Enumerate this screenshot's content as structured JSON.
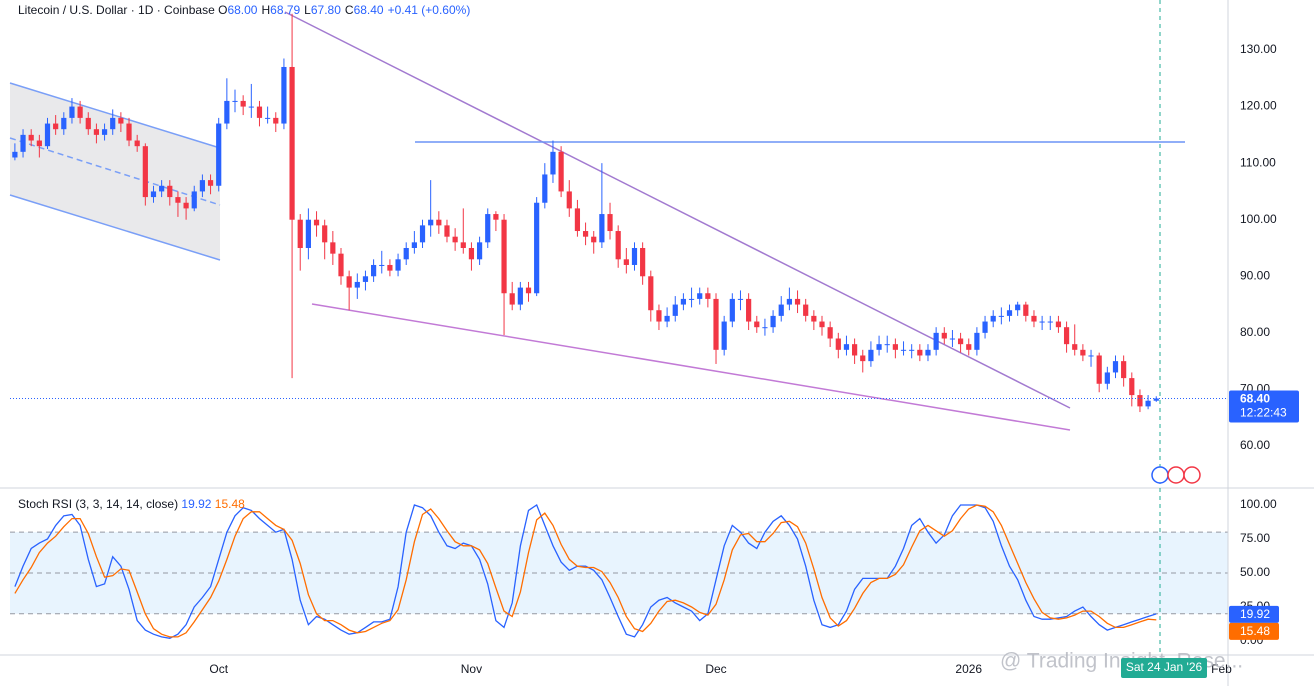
{
  "chart_data": [
    {
      "type": "candlestick",
      "title": "Litecoin / U.S. Dollar · 1D · Coinbase",
      "ohlc_legend": [
        {
          "key": "O",
          "value": "68.00"
        },
        {
          "key": "H",
          "value": "68.79"
        },
        {
          "key": "L",
          "value": "67.80"
        },
        {
          "key": "C",
          "value": "68.40"
        }
      ],
      "change": "+0.41 (+0.60%)",
      "last_price_label": "68.40",
      "countdown": "12:22:43",
      "up_color": "#2962ff",
      "down_color": "#f23645",
      "ohlc": [
        [
          111,
          113.5,
          110.5,
          112
        ],
        [
          112,
          116,
          111,
          115
        ],
        [
          115,
          116,
          113,
          114
        ],
        [
          114,
          115,
          111,
          113
        ],
        [
          113,
          118,
          112.5,
          117
        ],
        [
          117,
          118.5,
          115,
          116
        ],
        [
          116,
          119,
          115,
          118
        ],
        [
          118,
          121.5,
          117,
          120
        ],
        [
          120,
          121,
          117,
          118
        ],
        [
          118,
          119,
          115,
          116
        ],
        [
          116,
          117,
          113.5,
          115
        ],
        [
          115,
          117,
          114,
          116
        ],
        [
          116,
          119.5,
          115,
          118
        ],
        [
          118,
          119,
          115.5,
          117
        ],
        [
          117,
          118,
          113,
          114
        ],
        [
          114,
          115,
          112,
          113
        ],
        [
          113,
          113.5,
          102.5,
          104
        ],
        [
          104,
          106,
          103,
          105
        ],
        [
          105,
          107,
          104,
          106
        ],
        [
          106,
          107,
          102.5,
          104
        ],
        [
          104,
          105,
          100.5,
          103
        ],
        [
          103,
          104,
          100,
          102
        ],
        [
          102,
          106,
          101.5,
          105
        ],
        [
          105,
          108,
          104,
          107
        ],
        [
          107,
          108,
          104.5,
          106
        ],
        [
          106,
          118,
          105,
          117
        ],
        [
          117,
          125,
          116,
          121
        ],
        [
          121,
          123,
          119,
          121
        ],
        [
          121,
          122,
          118.5,
          120
        ],
        [
          120,
          124,
          118,
          120
        ],
        [
          120,
          121,
          116.5,
          118
        ],
        [
          118,
          120,
          117,
          118
        ],
        [
          118,
          119,
          115.5,
          117
        ],
        [
          117,
          128.5,
          116,
          127
        ],
        [
          127,
          136.4,
          72,
          100
        ],
        [
          100,
          101,
          91,
          95
        ],
        [
          95,
          102,
          93,
          100
        ],
        [
          100,
          101.5,
          97,
          99
        ],
        [
          99,
          100,
          93,
          96
        ],
        [
          96,
          98,
          92,
          94
        ],
        [
          94,
          95,
          88.5,
          90
        ],
        [
          90,
          91,
          84,
          88
        ],
        [
          88,
          90.5,
          86,
          89
        ],
        [
          89,
          91,
          87.5,
          90
        ],
        [
          90,
          93,
          89,
          92
        ],
        [
          92,
          94.5,
          90.5,
          92
        ],
        [
          92,
          93,
          90,
          91
        ],
        [
          91,
          94,
          90,
          93
        ],
        [
          93,
          96,
          92,
          95
        ],
        [
          95,
          98,
          94,
          96
        ],
        [
          96,
          100,
          95,
          99
        ],
        [
          99,
          107,
          97,
          100
        ],
        [
          100,
          101.5,
          97.5,
          99
        ],
        [
          99,
          100,
          96,
          97
        ],
        [
          97,
          98.5,
          94.5,
          96
        ],
        [
          96,
          102,
          94,
          95
        ],
        [
          95,
          96,
          91,
          93
        ],
        [
          93,
          97,
          92,
          96
        ],
        [
          96,
          102,
          95,
          101
        ],
        [
          101,
          101.5,
          98,
          100
        ],
        [
          100,
          101,
          79.6,
          87
        ],
        [
          87,
          89,
          84,
          85
        ],
        [
          85,
          89,
          84,
          88
        ],
        [
          88,
          89,
          85.5,
          87
        ],
        [
          87,
          104,
          86.5,
          103
        ],
        [
          103,
          110,
          102,
          108
        ],
        [
          108,
          114,
          106.5,
          112
        ],
        [
          112,
          113,
          104,
          105
        ],
        [
          105,
          107,
          100.5,
          102
        ],
        [
          102,
          103.5,
          97,
          98
        ],
        [
          98,
          99.5,
          95.5,
          97
        ],
        [
          97,
          98,
          94,
          96
        ],
        [
          96,
          110,
          95,
          101
        ],
        [
          101,
          103,
          96.5,
          98
        ],
        [
          98,
          99,
          91.5,
          93
        ],
        [
          93,
          95,
          90.5,
          92
        ],
        [
          92,
          96,
          91,
          95
        ],
        [
          95,
          96,
          88.5,
          90
        ],
        [
          90,
          91,
          82,
          84
        ],
        [
          84,
          85,
          80.5,
          82
        ],
        [
          82,
          84.5,
          81,
          83
        ],
        [
          83,
          86.5,
          82,
          85
        ],
        [
          85,
          87,
          84,
          86
        ],
        [
          86,
          88,
          84.5,
          86
        ],
        [
          86,
          88,
          85,
          87
        ],
        [
          87,
          88,
          84.5,
          86
        ],
        [
          86,
          87,
          74.5,
          77
        ],
        [
          77,
          83,
          76,
          82
        ],
        [
          82,
          87,
          81,
          86
        ],
        [
          86,
          87.5,
          84,
          86
        ],
        [
          86,
          87,
          80.5,
          82
        ],
        [
          82,
          83,
          80,
          81
        ],
        [
          81,
          82.5,
          79.5,
          81
        ],
        [
          81,
          84,
          80,
          83
        ],
        [
          83,
          86.5,
          82,
          85
        ],
        [
          85,
          88,
          84,
          86
        ],
        [
          86,
          87.5,
          83.5,
          85
        ],
        [
          85,
          86,
          82,
          83
        ],
        [
          83,
          84,
          80.5,
          82
        ],
        [
          82,
          83,
          79.5,
          81
        ],
        [
          81,
          82,
          77.5,
          79
        ],
        [
          79,
          80,
          75.5,
          77
        ],
        [
          77,
          79.5,
          76,
          78
        ],
        [
          78,
          79,
          74.5,
          76
        ],
        [
          76,
          77,
          73,
          75
        ],
        [
          75,
          78.5,
          74,
          77
        ],
        [
          77,
          79.5,
          76,
          78
        ],
        [
          78,
          79.5,
          76.5,
          78
        ],
        [
          78,
          79,
          75.5,
          77
        ],
        [
          77,
          78.5,
          76,
          77
        ],
        [
          77,
          78,
          75.5,
          77
        ],
        [
          77,
          78,
          75,
          76
        ],
        [
          76,
          78,
          75,
          77
        ],
        [
          77,
          81,
          76,
          80
        ],
        [
          80,
          81,
          78,
          79
        ],
        [
          79,
          80.5,
          77.5,
          79
        ],
        [
          79,
          80,
          76.5,
          78
        ],
        [
          78,
          79,
          76,
          77
        ],
        [
          77,
          81,
          76,
          80
        ],
        [
          80,
          83,
          79,
          82
        ],
        [
          82,
          84,
          81,
          83
        ],
        [
          83,
          84.5,
          81.5,
          83
        ],
        [
          83,
          85,
          82,
          84
        ],
        [
          84,
          85.5,
          83,
          85
        ],
        [
          85,
          85.5,
          82,
          83
        ],
        [
          83,
          84,
          81,
          82
        ],
        [
          82,
          83,
          80.5,
          82
        ],
        [
          82,
          83,
          80.5,
          82
        ],
        [
          82,
          83,
          80,
          81
        ],
        [
          81,
          82,
          76.5,
          78
        ],
        [
          78,
          81.5,
          76,
          77
        ],
        [
          77,
          78,
          75,
          76
        ],
        [
          76,
          77,
          74,
          76
        ],
        [
          76,
          76.5,
          69.5,
          71
        ],
        [
          71,
          74,
          70,
          73
        ],
        [
          73,
          76,
          72,
          75
        ],
        [
          75,
          76,
          70.5,
          72
        ],
        [
          72,
          73,
          67,
          69
        ],
        [
          69,
          70,
          66,
          67
        ],
        [
          67,
          69,
          66.5,
          68
        ],
        [
          68,
          68.79,
          67.8,
          68.4
        ]
      ],
      "xlim": [
        -0.6,
        148.8
      ],
      "xticks": [
        {
          "value": 25,
          "label": "Oct"
        },
        {
          "value": 56,
          "label": "Nov"
        },
        {
          "value": 86,
          "label": "Dec"
        },
        {
          "value": 117,
          "label": "2026"
        },
        {
          "value": 148,
          "label": "Feb"
        }
      ],
      "ylim": [
        52.75,
        138.84
      ],
      "yticks": [
        {
          "value": 60,
          "label": "60.00"
        },
        {
          "value": 70,
          "label": "70.00"
        },
        {
          "value": 80,
          "label": "80.00"
        },
        {
          "value": 90,
          "label": "90.00"
        },
        {
          "value": 100,
          "label": "100.00"
        },
        {
          "value": 110,
          "label": "110.00"
        },
        {
          "value": 120,
          "label": "120.00"
        },
        {
          "value": 130,
          "label": "130.00"
        }
      ],
      "grid": true,
      "cursor_date": "Sat 24 Jan '26",
      "watermark": "@ Trading Insight_Rese..."
    },
    {
      "type": "line",
      "title": "Stoch RSI (3, 3, 14, 14, close)",
      "xlim": [
        -0.6,
        148.8
      ],
      "ylim": [
        -10.3,
        111
      ],
      "yticks": [
        {
          "value": 0,
          "label": "0.00"
        },
        {
          "value": 25,
          "label": "25.00"
        },
        {
          "value": 50,
          "label": "50.00"
        },
        {
          "value": 75,
          "label": "75.00"
        },
        {
          "value": 100,
          "label": "100.00"
        }
      ],
      "levels": [
        20,
        50,
        80
      ],
      "band_color": "#2196f3",
      "series": [
        {
          "name": "K",
          "color": "#2962ff",
          "values": [
            40,
            55,
            68,
            72,
            75,
            85,
            92,
            93,
            85,
            60,
            40,
            42,
            62,
            55,
            38,
            15,
            8,
            5,
            3,
            2,
            5,
            12,
            25,
            32,
            40,
            60,
            80,
            92,
            98,
            96,
            90,
            85,
            80,
            82,
            60,
            30,
            12,
            18,
            16,
            12,
            8,
            5,
            6,
            10,
            14,
            14,
            16,
            40,
            80,
            100,
            98,
            92,
            80,
            70,
            68,
            72,
            70,
            60,
            42,
            15,
            10,
            28,
            70,
            96,
            100,
            85,
            70,
            58,
            52,
            55,
            55,
            52,
            45,
            32,
            18,
            5,
            3,
            12,
            25,
            30,
            32,
            28,
            25,
            22,
            15,
            20,
            45,
            70,
            85,
            80,
            72,
            68,
            80,
            88,
            92,
            85,
            75,
            55,
            30,
            12,
            10,
            12,
            22,
            38,
            46,
            46,
            46,
            46,
            55,
            68,
            85,
            90,
            80,
            72,
            78,
            92,
            100,
            100,
            100,
            98,
            88,
            70,
            55,
            45,
            30,
            18,
            16,
            16,
            17,
            18,
            22,
            25,
            18,
            12,
            8,
            10,
            12,
            14,
            16,
            18,
            19.92
          ]
        },
        {
          "name": "D",
          "color": "#ff6d00",
          "values": [
            35,
            45,
            54,
            65,
            72,
            77,
            84,
            90,
            90,
            79,
            62,
            47,
            48,
            53,
            52,
            36,
            20,
            9,
            5,
            3,
            3,
            6,
            14,
            23,
            32,
            44,
            60,
            77,
            90,
            95,
            95,
            90,
            85,
            82,
            74,
            57,
            34,
            20,
            15,
            15,
            12,
            8,
            6,
            7,
            10,
            13,
            15,
            23,
            45,
            73,
            93,
            97,
            90,
            81,
            73,
            70,
            70,
            67,
            57,
            39,
            22,
            18,
            36,
            65,
            89,
            94,
            85,
            71,
            60,
            55,
            54,
            54,
            51,
            43,
            32,
            18,
            9,
            7,
            13,
            22,
            29,
            30,
            28,
            25,
            21,
            19,
            27,
            45,
            67,
            78,
            79,
            73,
            73,
            79,
            87,
            88,
            84,
            72,
            53,
            32,
            17,
            11,
            15,
            24,
            35,
            43,
            46,
            46,
            49,
            56,
            69,
            81,
            85,
            81,
            77,
            81,
            90,
            97,
            100,
            99,
            95,
            85,
            71,
            57,
            43,
            31,
            21,
            17,
            16,
            17,
            19,
            22,
            22,
            18,
            13,
            10,
            10,
            12,
            14,
            16,
            15.48
          ]
        }
      ]
    }
  ]
}
